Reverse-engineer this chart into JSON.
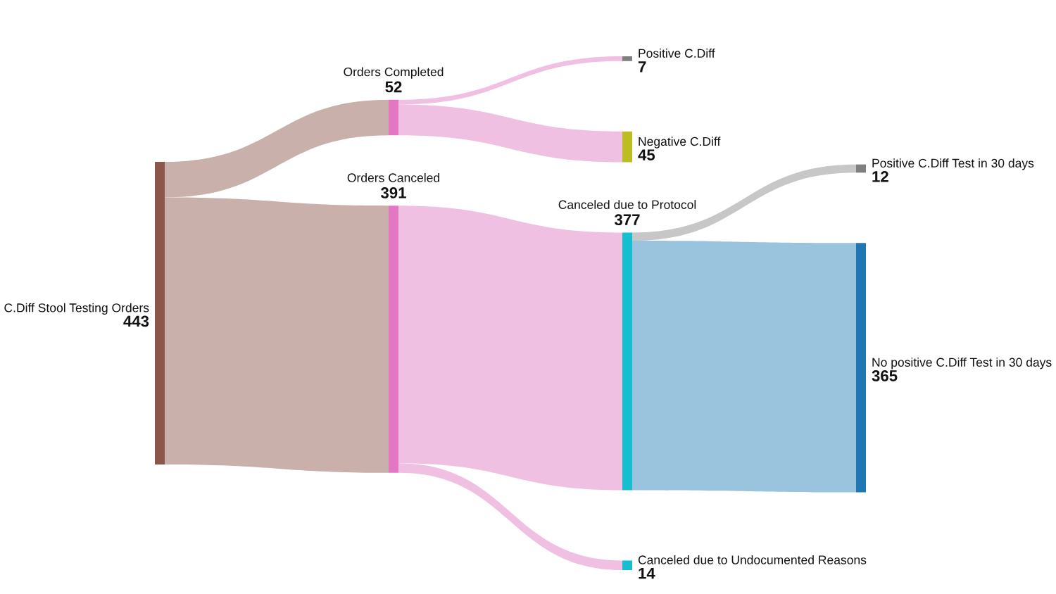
{
  "chart_data": {
    "type": "other",
    "categories": [
      "C.Diff Stool Testing Orders",
      "Orders Completed",
      "Orders Canceled",
      "Canceled due to Protocol",
      "Positive C.Diff",
      "Negative C.Diff",
      "Canceled due to Undocumented Reasons",
      "Positive C.Diff Test in 30 days",
      "No positive C.Diff Test in 30 days"
    ],
    "values": [
      443,
      null,
      null,
      null,
      null,
      null,
      null,
      null,
      null
    ],
    "colors": [
      "#8c564b",
      "#e377c2",
      "#e377c2",
      "#17becf",
      "#7f7f7f",
      "#bcbd22",
      "#17becf",
      "#7f7f7f",
      "#1f77b4"
    ],
    "data_labels": true,
    "series": [
      {
        "colors": [
          null,
          "#cab0aa",
          "#cab0aa",
          null,
          null,
          null,
          null,
          null,
          null
        ],
        "values": [
          null,
          52,
          391,
          null,
          null,
          null,
          null,
          null,
          null
        ]
      },
      {
        "colors": [
          null,
          null,
          null,
          null,
          "#f0c0e3",
          "#f0c0e3",
          null,
          null,
          null
        ],
        "values": [
          null,
          null,
          null,
          null,
          7,
          45,
          null,
          null,
          null
        ]
      },
      {
        "colors": [
          null,
          null,
          null,
          "#f0c0e3",
          null,
          null,
          "#f0c0e3",
          null,
          null
        ],
        "values": [
          null,
          null,
          null,
          377,
          null,
          null,
          14,
          null,
          null
        ]
      },
      {
        "colors": [
          null,
          null,
          null,
          null,
          null,
          null,
          null,
          "#c7c7c7",
          "#9ac3dd"
        ],
        "values": [
          null,
          null,
          null,
          null,
          null,
          null,
          null,
          12,
          365
        ]
      }
    ]
  }
}
